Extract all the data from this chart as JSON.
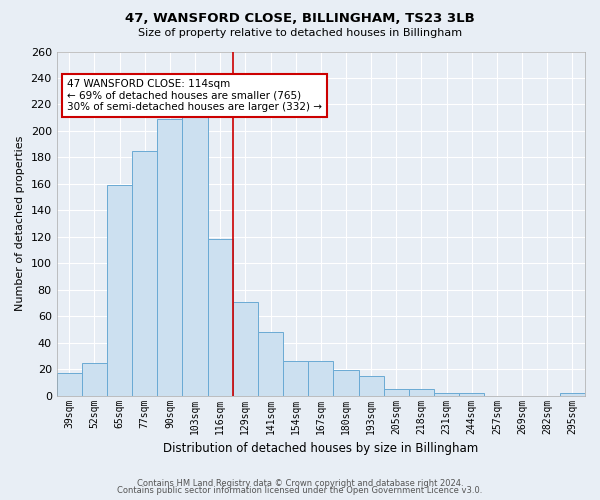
{
  "title": "47, WANSFORD CLOSE, BILLINGHAM, TS23 3LB",
  "subtitle": "Size of property relative to detached houses in Billingham",
  "xlabel": "Distribution of detached houses by size in Billingham",
  "ylabel": "Number of detached properties",
  "bar_labels": [
    "39sqm",
    "52sqm",
    "65sqm",
    "77sqm",
    "90sqm",
    "103sqm",
    "116sqm",
    "129sqm",
    "141sqm",
    "154sqm",
    "167sqm",
    "180sqm",
    "193sqm",
    "205sqm",
    "218sqm",
    "231sqm",
    "244sqm",
    "257sqm",
    "269sqm",
    "282sqm",
    "295sqm"
  ],
  "bar_values": [
    17,
    25,
    159,
    185,
    209,
    215,
    118,
    71,
    48,
    26,
    26,
    19,
    15,
    5,
    5,
    2,
    2,
    0,
    0,
    0,
    2
  ],
  "bar_color": "#cce0f0",
  "bar_edge_color": "#6aaad4",
  "vline_color": "#cc0000",
  "annotation_text": "47 WANSFORD CLOSE: 114sqm\n← 69% of detached houses are smaller (765)\n30% of semi-detached houses are larger (332) →",
  "annotation_box_color": "#ffffff",
  "annotation_box_edge": "#cc0000",
  "ylim": [
    0,
    260
  ],
  "yticks": [
    0,
    20,
    40,
    60,
    80,
    100,
    120,
    140,
    160,
    180,
    200,
    220,
    240,
    260
  ],
  "footer_line1": "Contains HM Land Registry data © Crown copyright and database right 2024.",
  "footer_line2": "Contains public sector information licensed under the Open Government Licence v3.0.",
  "background_color": "#e8eef5",
  "plot_bg_color": "#e8eef5",
  "grid_color": "#ffffff",
  "title_fontsize": 9.5,
  "subtitle_fontsize": 8,
  "ylabel_fontsize": 8,
  "xlabel_fontsize": 8.5,
  "tick_fontsize": 7,
  "annotation_fontsize": 7.5,
  "footer_fontsize": 6
}
